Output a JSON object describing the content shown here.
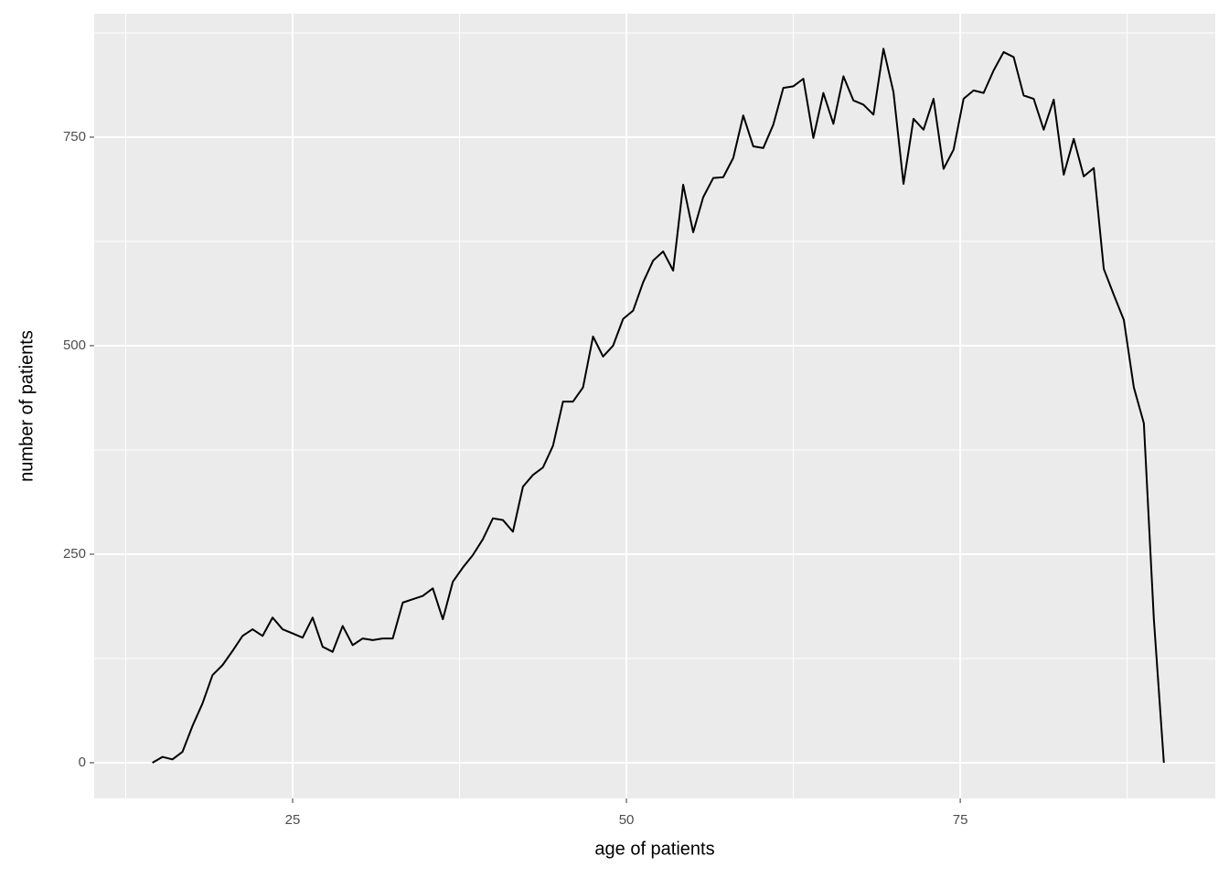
{
  "chart_data": {
    "type": "line",
    "x_label": "age of patients",
    "y_label": "number of patients",
    "x": [
      14.5,
      15.25,
      16,
      16.75,
      17.5,
      18.25,
      19,
      19.75,
      20.5,
      21.25,
      22,
      22.75,
      23.5,
      24.25,
      25,
      25.75,
      26.5,
      27.25,
      28,
      28.75,
      29.5,
      30.25,
      31,
      31.75,
      32.5,
      33.25,
      34,
      34.75,
      35.5,
      36.25,
      37,
      37.75,
      38.5,
      39.25,
      40,
      40.75,
      41.5,
      42.25,
      43,
      43.75,
      44.5,
      45.25,
      46,
      46.75,
      47.5,
      48.25,
      49,
      49.75,
      50.5,
      51.25,
      52,
      52.75,
      53.5,
      54.25,
      55,
      55.75,
      56.5,
      57.25,
      58,
      58.75,
      59.5,
      60.25,
      61,
      61.75,
      62.5,
      63.25,
      64,
      64.75,
      65.5,
      66.25,
      67,
      67.75,
      68.5,
      69.25,
      70,
      70.75,
      71.5,
      72.25,
      73,
      73.75,
      74.5,
      75.25,
      76,
      76.75,
      77.5,
      78.25,
      79,
      79.75,
      80.5,
      81.25,
      82,
      82.75,
      83.5,
      84.25,
      85,
      85.75,
      86.5,
      87.25,
      88,
      88.75,
      89.5,
      90.25
    ],
    "series": [
      {
        "color": "#000000",
        "values": [
          0,
          7,
          4,
          13,
          44,
          71,
          105,
          117,
          134,
          152,
          160,
          152,
          174,
          160,
          155,
          150,
          174,
          139,
          133,
          164,
          141,
          149,
          147,
          149,
          149,
          192,
          196,
          200,
          209,
          172,
          217,
          234,
          249,
          268,
          293,
          291,
          277,
          331,
          345,
          354,
          380,
          433,
          433,
          450,
          511,
          487,
          500,
          532,
          542,
          576,
          602,
          613,
          590,
          693,
          636,
          678,
          701,
          702,
          725,
          776,
          739,
          737,
          765,
          809,
          811,
          820,
          749,
          803,
          766,
          823,
          794,
          789,
          777,
          856,
          804,
          694,
          772,
          759,
          796,
          712,
          735,
          796,
          806,
          803,
          830,
          852,
          846,
          800,
          796,
          759,
          795,
          705,
          748,
          703,
          713,
          592,
          561,
          531,
          450,
          407,
          172,
          0
        ]
      }
    ],
    "xlim": [
      10.14,
      94.1
    ],
    "ylim": [
      -42.8,
      898
    ],
    "xticks": [
      25,
      50,
      75
    ],
    "yticks": [
      0,
      250,
      500,
      750
    ],
    "x_minor": [
      12.5,
      37.5,
      62.5,
      87.5
    ],
    "y_minor": [
      125,
      375,
      625,
      875
    ],
    "grid": true,
    "panel_color": "#ebebeb"
  }
}
